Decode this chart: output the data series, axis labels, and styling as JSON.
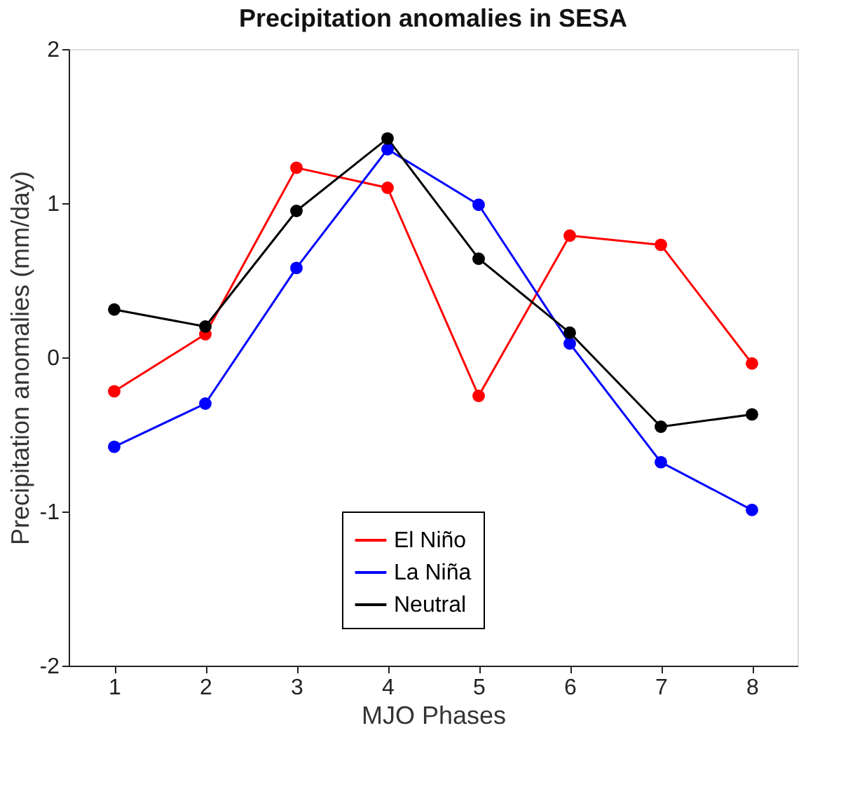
{
  "chart_data": {
    "type": "line",
    "title": "Precipitation anomalies in SESA",
    "xlabel": "MJO Phases",
    "ylabel": "Precipitation anomalies (mm/day)",
    "x": [
      1,
      2,
      3,
      4,
      5,
      6,
      7,
      8
    ],
    "series": [
      {
        "name": "El Niño",
        "color": "#ff0000",
        "values": [
          -0.22,
          0.15,
          1.23,
          1.1,
          -0.25,
          0.79,
          0.73,
          -0.04
        ]
      },
      {
        "name": "La Niña",
        "color": "#0000ff",
        "values": [
          -0.58,
          -0.3,
          0.58,
          1.35,
          0.99,
          0.09,
          -0.68,
          -0.99
        ]
      },
      {
        "name": "Neutral",
        "color": "#000000",
        "values": [
          0.31,
          0.2,
          0.95,
          1.42,
          0.64,
          0.16,
          -0.45,
          -0.37
        ]
      }
    ],
    "xlim": [
      0.5,
      8.5
    ],
    "xticks": [
      1,
      2,
      3,
      4,
      5,
      6,
      7,
      8
    ],
    "ylim": [
      -2,
      2
    ],
    "yticks": [
      -2,
      -1,
      0,
      1,
      2
    ],
    "grid": false,
    "legend": "bottom",
    "marker": "circle",
    "line_style": "solid"
  }
}
